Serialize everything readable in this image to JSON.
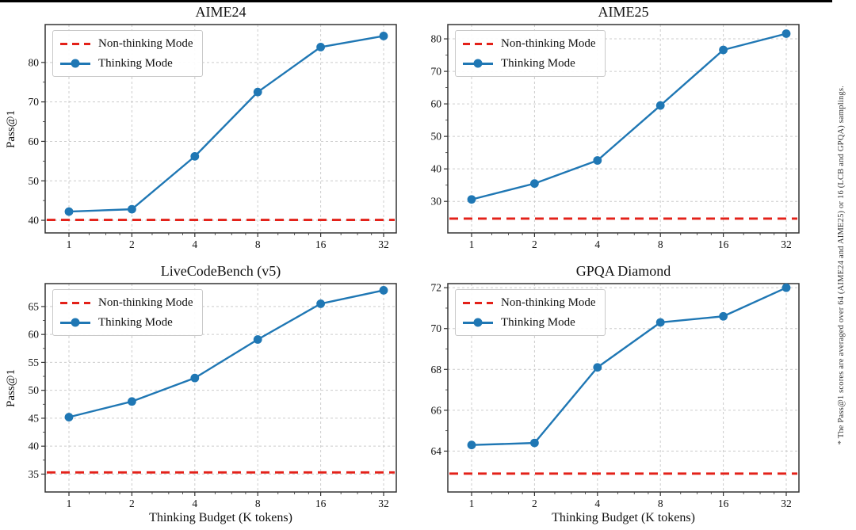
{
  "figure": {
    "ylabel": "Pass@1",
    "xlabel": "Thinking Budget (K tokens)",
    "legend": {
      "non_thinking": "Non-thinking Mode",
      "thinking": "Thinking Mode"
    },
    "side_note": "* The Pass@1 scores are averaged over 64 (AIME24 and AIME25) or 16 (LCB and GPQA) samplings.",
    "colors": {
      "thinking_line": "#1f77b4",
      "non_thinking_line": "#e32119",
      "grid": "#cccccc",
      "spine": "#333333",
      "tick_text": "#111111"
    }
  },
  "chart_data": [
    {
      "type": "line",
      "title": "AIME24",
      "xscale": "log2",
      "x": [
        1,
        2,
        4,
        8,
        16,
        32
      ],
      "series": [
        {
          "name": "Thinking Mode",
          "values": [
            42.2,
            42.8,
            56.2,
            72.5,
            83.9,
            86.7
          ]
        },
        {
          "name": "Non-thinking Mode",
          "baseline": 40.1
        }
      ],
      "yticks": [
        40,
        50,
        60,
        70,
        80
      ],
      "ylim": [
        36.8,
        89.6
      ],
      "show_ylabel": true,
      "show_xlabel": false
    },
    {
      "type": "line",
      "title": "AIME25",
      "xscale": "log2",
      "x": [
        1,
        2,
        4,
        8,
        16,
        32
      ],
      "series": [
        {
          "name": "Thinking Mode",
          "values": [
            30.6,
            35.5,
            42.6,
            59.5,
            76.6,
            81.6
          ]
        },
        {
          "name": "Non-thinking Mode",
          "baseline": 24.7
        }
      ],
      "yticks": [
        30,
        40,
        50,
        60,
        70,
        80
      ],
      "ylim": [
        20.3,
        84.4
      ],
      "show_ylabel": false,
      "show_xlabel": false
    },
    {
      "type": "line",
      "title": "LiveCodeBench (v5)",
      "xscale": "log2",
      "x": [
        1,
        2,
        4,
        8,
        16,
        32
      ],
      "series": [
        {
          "name": "Thinking Mode",
          "values": [
            45.2,
            48.0,
            52.2,
            59.1,
            65.5,
            67.9
          ]
        },
        {
          "name": "Non-thinking Mode",
          "baseline": 35.3
        }
      ],
      "yticks": [
        35,
        40,
        45,
        50,
        55,
        60,
        65
      ],
      "ylim": [
        31.8,
        69.1
      ],
      "show_ylabel": true,
      "show_xlabel": true
    },
    {
      "type": "line",
      "title": "GPQA Diamond",
      "xscale": "log2",
      "x": [
        1,
        2,
        4,
        8,
        16,
        32
      ],
      "series": [
        {
          "name": "Thinking Mode",
          "values": [
            64.3,
            64.4,
            68.1,
            70.3,
            70.6,
            72.0
          ]
        },
        {
          "name": "Non-thinking Mode",
          "baseline": 62.9
        }
      ],
      "yticks": [
        64,
        66,
        68,
        70,
        72
      ],
      "ylim": [
        62.0,
        72.2
      ],
      "show_ylabel": false,
      "show_xlabel": true
    }
  ]
}
